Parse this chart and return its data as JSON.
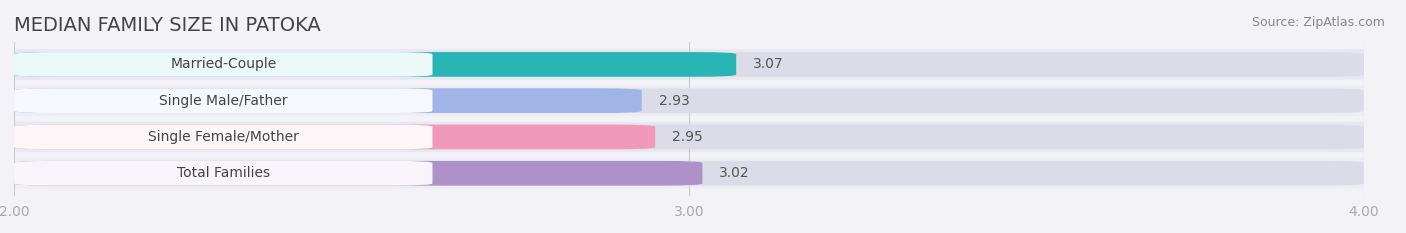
{
  "title": "MEDIAN FAMILY SIZE IN PATOKA",
  "source": "Source: ZipAtlas.com",
  "categories": [
    "Married-Couple",
    "Single Male/Father",
    "Single Female/Mother",
    "Total Families"
  ],
  "values": [
    3.07,
    2.93,
    2.95,
    3.02
  ],
  "bar_colors": [
    "#2ab5b5",
    "#a0b4e8",
    "#f099b8",
    "#b090c8"
  ],
  "row_bg_colors": [
    "#e8e8f0",
    "#ebebf2",
    "#ebebf2",
    "#e4e4ee"
  ],
  "xlim": [
    2.0,
    4.0
  ],
  "xstart": 2.0,
  "xticks": [
    2.0,
    3.0,
    4.0
  ],
  "xtick_labels": [
    "2.00",
    "3.00",
    "4.00"
  ],
  "background_color": "#f2f2f7",
  "bar_bg_color": "#dcdce8",
  "label_bg_color": "#ffffff",
  "title_fontsize": 14,
  "label_fontsize": 10,
  "value_fontsize": 10,
  "source_fontsize": 9,
  "title_color": "#444444",
  "label_text_color": "#444444",
  "value_text_color": "#555555",
  "source_color": "#888888",
  "tick_color": "#aaaaaa",
  "grid_color": "#cccccc"
}
